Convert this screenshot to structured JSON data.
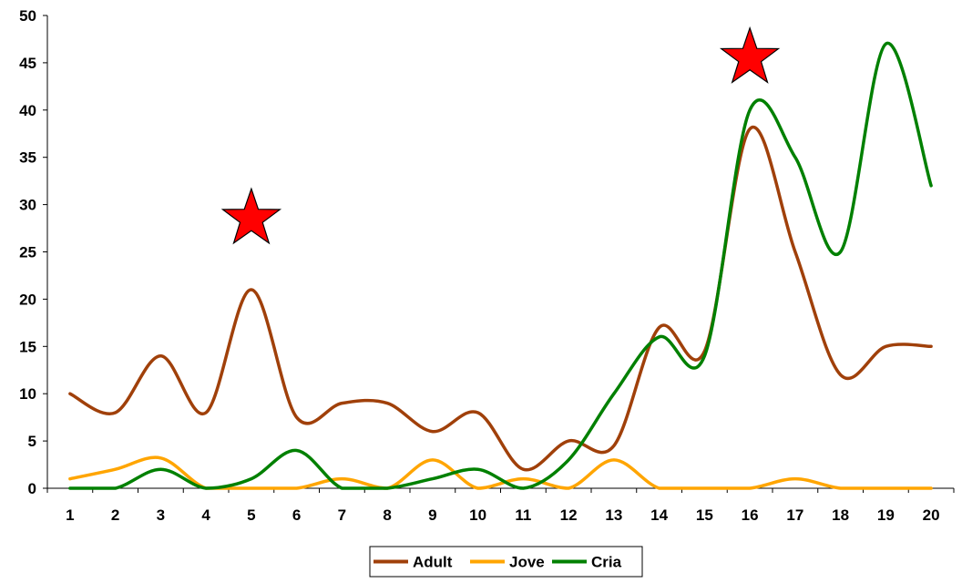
{
  "chart_data": {
    "type": "line",
    "title": "",
    "xlabel": "",
    "ylabel": "",
    "categories": [
      "1",
      "2",
      "3",
      "4",
      "5",
      "6",
      "7",
      "8",
      "9",
      "10",
      "11",
      "12",
      "13",
      "14",
      "15",
      "16",
      "17",
      "18",
      "19",
      "20"
    ],
    "ylim": [
      0,
      50
    ],
    "yticks": [
      "0",
      "5",
      "10",
      "15",
      "20",
      "25",
      "30",
      "35",
      "40",
      "45",
      "50"
    ],
    "grid": false,
    "legend": "bottom",
    "series": [
      {
        "name": "Adult",
        "color": "#A0400A",
        "values": [
          10,
          8,
          14,
          8,
          21,
          7.5,
          9,
          9,
          6,
          8,
          2,
          5,
          4.5,
          17,
          14.5,
          38,
          25,
          12,
          15,
          15
        ]
      },
      {
        "name": "Jove",
        "color": "#FFA500",
        "values": [
          1,
          2,
          3.2,
          0,
          0,
          0,
          1,
          0,
          3,
          0,
          1,
          0,
          3,
          0,
          0,
          0,
          1,
          0,
          0,
          0
        ]
      },
      {
        "name": "Cria",
        "color": "#008000",
        "values": [
          0,
          0,
          2,
          0,
          1,
          4,
          0,
          0,
          1,
          2,
          0,
          3,
          10,
          16,
          14,
          40,
          35,
          25,
          47,
          32
        ]
      }
    ],
    "markers": [
      {
        "symbol": "red-star",
        "x": 5,
        "y": 28.5
      },
      {
        "symbol": "red-star",
        "x": 16,
        "y": 45.5
      }
    ]
  }
}
